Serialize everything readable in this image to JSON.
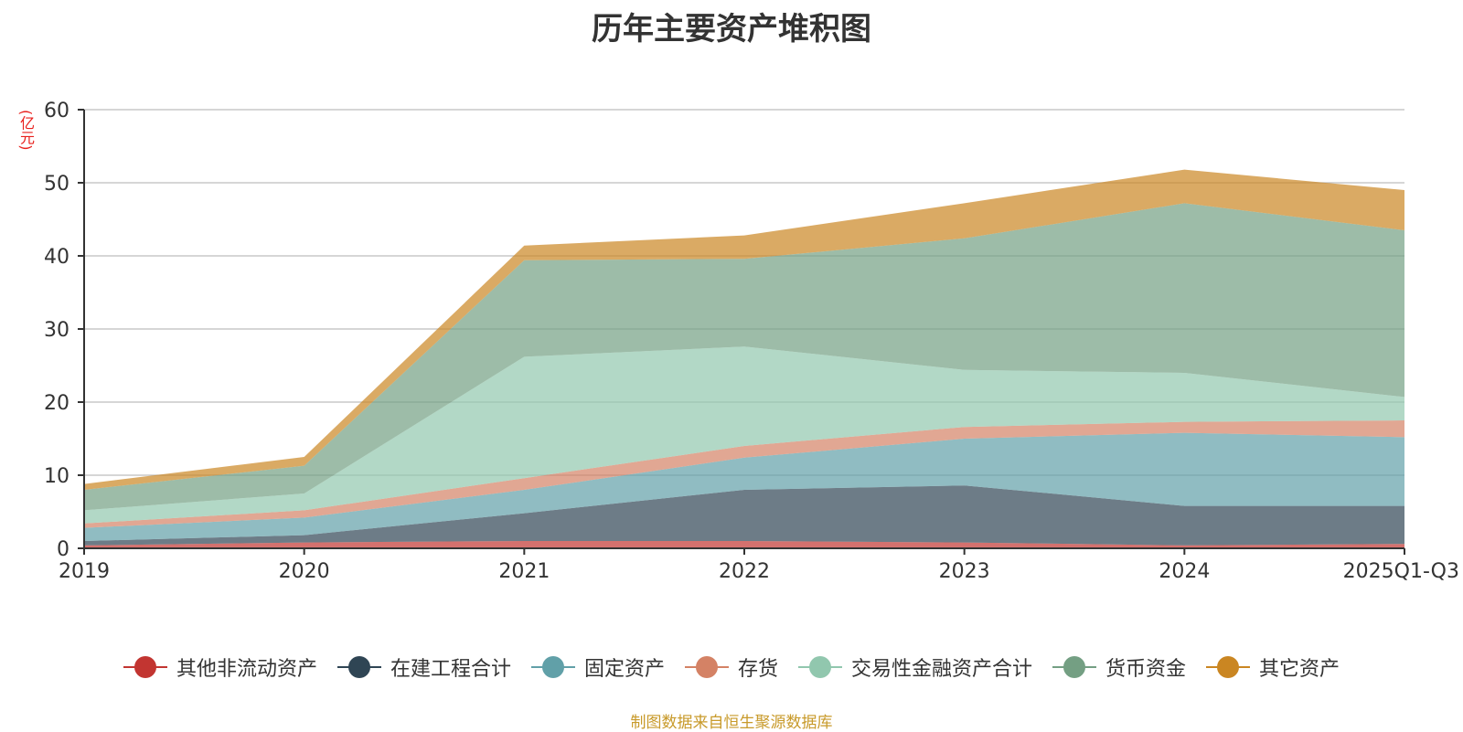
{
  "chart_data": {
    "type": "area",
    "stacked": true,
    "title": "历年主要资产堆积图",
    "ylabel": "(亿元)",
    "xlabel": "",
    "categories": [
      "2019",
      "2020",
      "2021",
      "2022",
      "2023",
      "2024",
      "2025Q1-Q3"
    ],
    "ylim": [
      0,
      60
    ],
    "yticks": [
      0,
      10,
      20,
      30,
      40,
      50,
      60
    ],
    "grid": true,
    "legend_position": "bottom",
    "series": [
      {
        "name": "其他非流动资产",
        "color": "#c23531",
        "values": [
          0.4,
          0.8,
          1.0,
          1.0,
          0.8,
          0.4,
          0.6
        ]
      },
      {
        "name": "在建工程合计",
        "color": "#2f4554",
        "values": [
          0.6,
          1.0,
          3.8,
          7.0,
          7.8,
          5.4,
          5.2
        ]
      },
      {
        "name": "固定资产",
        "color": "#61a0a8",
        "values": [
          1.8,
          2.4,
          3.2,
          4.4,
          6.4,
          10.0,
          9.4
        ]
      },
      {
        "name": "存货",
        "color": "#d48265",
        "values": [
          0.6,
          1.0,
          1.6,
          1.6,
          1.6,
          1.5,
          2.3
        ]
      },
      {
        "name": "交易性金融资产合计",
        "color": "#91c7ae",
        "values": [
          1.8,
          2.3,
          16.6,
          13.6,
          7.8,
          6.7,
          3.2
        ]
      },
      {
        "name": "货币资金",
        "color": "#749f83",
        "values": [
          2.8,
          3.8,
          13.2,
          12.0,
          18.0,
          23.2,
          22.8
        ]
      },
      {
        "name": "其它资产",
        "color": "#ca8622",
        "values": [
          0.8,
          1.2,
          2.0,
          3.2,
          4.8,
          4.6,
          5.5
        ]
      }
    ]
  },
  "source_text": "制图数据来自恒生聚源数据库"
}
